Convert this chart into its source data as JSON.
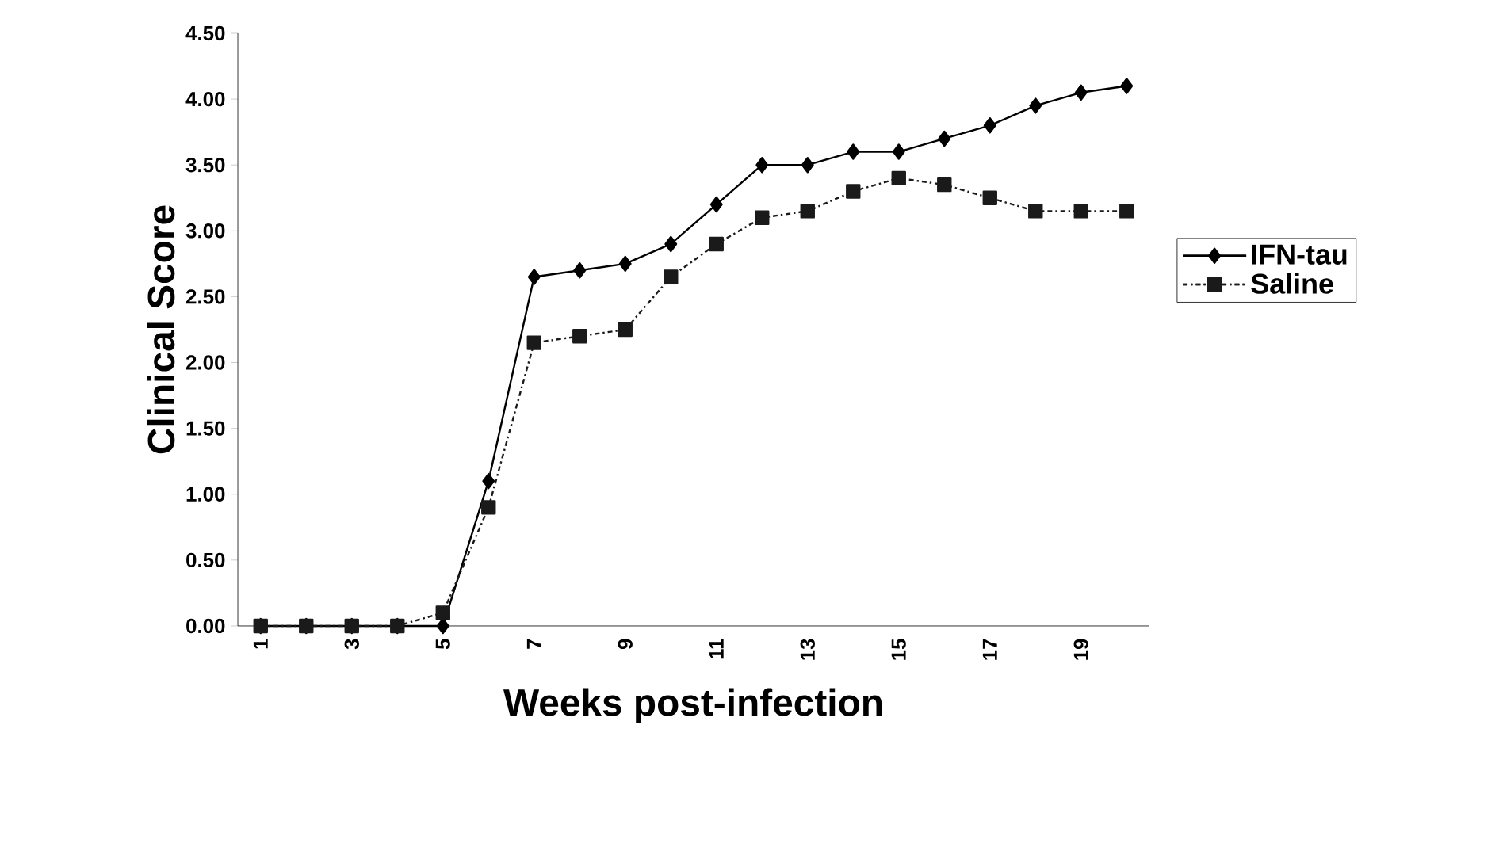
{
  "chart_data": {
    "type": "line",
    "xlabel": "Weeks post-infection",
    "ylabel": "Clinical Score",
    "categories": [
      "1",
      null,
      "3",
      null,
      "5",
      null,
      "7",
      null,
      "9",
      null,
      "11",
      null,
      "13",
      null,
      "15",
      null,
      "17",
      null,
      "19",
      null
    ],
    "ylim": [
      0,
      4.5
    ],
    "yticks": [
      {
        "value": 0,
        "label": "0.00"
      },
      {
        "value": 0.5,
        "label": "0.50"
      },
      {
        "value": 1,
        "label": "1.00"
      },
      {
        "value": 1.5,
        "label": "1.50"
      },
      {
        "value": 2,
        "label": "2.00"
      },
      {
        "value": 2.5,
        "label": "2.50"
      },
      {
        "value": 3,
        "label": "3.00"
      },
      {
        "value": 3.5,
        "label": "3.50"
      },
      {
        "value": 4,
        "label": "4.00"
      },
      {
        "value": 4.5,
        "label": "4.50"
      }
    ],
    "legend": "right",
    "series": [
      {
        "name": "IFN-tau",
        "color": "#000000",
        "marker": "diamond",
        "line_style": "solid",
        "values": [
          0,
          0,
          0,
          0,
          0,
          1.1,
          2.65,
          2.7,
          2.75,
          2.9,
          3.2,
          3.5,
          3.5,
          3.6,
          3.6,
          3.7,
          3.8,
          3.95,
          4.05,
          4.1
        ]
      },
      {
        "name": "Saline",
        "color": "#1a1a1a",
        "marker": "square",
        "line_style": "dashdot",
        "values": [
          0,
          0,
          0,
          0,
          0.1,
          0.9,
          2.15,
          2.2,
          2.25,
          2.65,
          2.9,
          3.1,
          3.15,
          3.3,
          3.4,
          3.35,
          3.25,
          3.15,
          3.15,
          3.15
        ]
      }
    ]
  }
}
